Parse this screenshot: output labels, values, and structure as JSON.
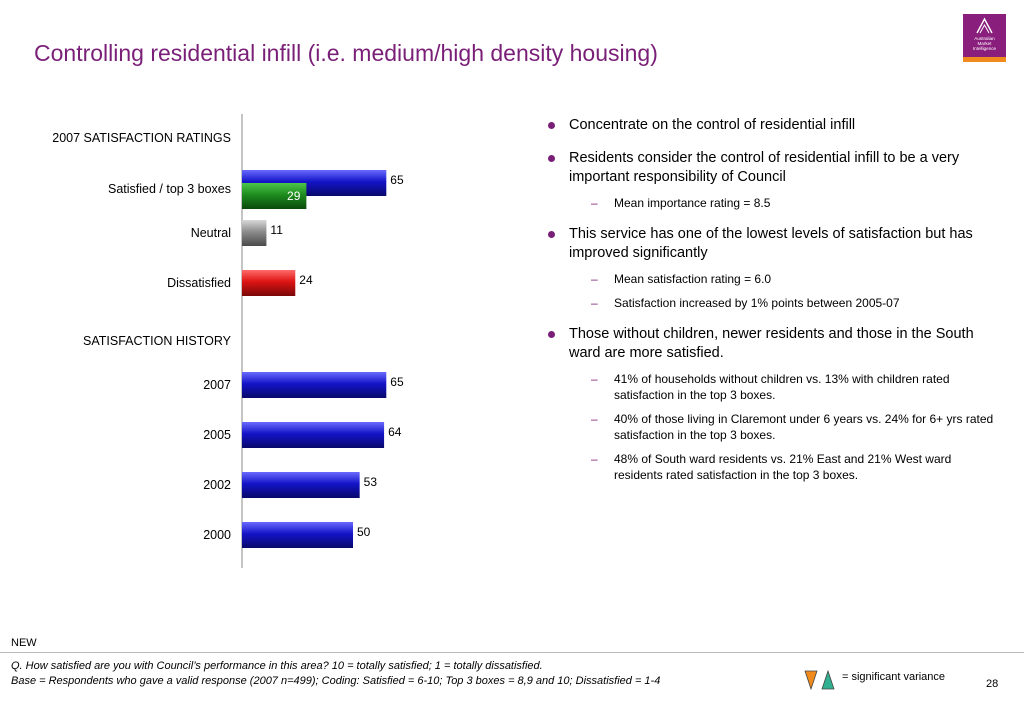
{
  "title": "Controlling residential infill (i.e. medium/high density housing)",
  "logo": {
    "lines": [
      "Australian",
      "Market",
      "Intelligence"
    ]
  },
  "colors": {
    "title": "#7a1f78",
    "blue": "#1414c8",
    "green": "#1e8c1e",
    "grey": "#8c8c8c",
    "red": "#dc1414",
    "orange": "#f08a1c",
    "teal": "#30b090"
  },
  "chart_data": {
    "type": "bar",
    "orientation": "horizontal",
    "section_headers": [
      "2007 SATISFACTION RATINGS",
      "SATISFACTION HISTORY"
    ],
    "xlim": [
      0,
      100
    ],
    "grid": false,
    "rows": [
      {
        "section": 0,
        "label": "Satisfied / top 3 boxes",
        "bars": [
          {
            "value": 65,
            "color": "blue"
          },
          {
            "value": 29,
            "color": "green"
          }
        ]
      },
      {
        "section": 0,
        "label": "Neutral",
        "bars": [
          {
            "value": 11,
            "color": "grey"
          }
        ]
      },
      {
        "section": 0,
        "label": "Dissatisfied",
        "bars": [
          {
            "value": 24,
            "color": "red"
          }
        ]
      },
      {
        "section": 1,
        "label": "2007",
        "bars": [
          {
            "value": 65,
            "color": "blue"
          }
        ]
      },
      {
        "section": 1,
        "label": "2005",
        "bars": [
          {
            "value": 64,
            "color": "blue"
          }
        ]
      },
      {
        "section": 1,
        "label": "2002",
        "bars": [
          {
            "value": 53,
            "color": "blue"
          }
        ]
      },
      {
        "section": 1,
        "label": "2000",
        "bars": [
          {
            "value": 50,
            "color": "blue"
          }
        ]
      }
    ]
  },
  "bullets": [
    {
      "text": "Concentrate on the control of residential infill",
      "subs": []
    },
    {
      "text": "Residents consider the control of residential infill to be a very important responsibility of Council",
      "subs": [
        "Mean importance rating = 8.5"
      ]
    },
    {
      "text": "This service has one of the lowest levels of satisfaction but has improved significantly",
      "subs": [
        "Mean satisfaction rating = 6.0",
        "Satisfaction increased by 1% points between 2005-07"
      ]
    },
    {
      "text": "Those without children, newer residents and those in the South ward are more satisfied.",
      "subs": [
        "41% of households without children vs. 13% with children rated satisfaction in the top 3 boxes.",
        "40% of those living in Claremont under 6 years vs. 24% for 6+ yrs rated satisfaction in the top 3 boxes.",
        "48% of South ward residents vs. 21% East and 21% West ward residents rated satisfaction in the top 3 boxes."
      ]
    }
  ],
  "footer": {
    "new_label": "NEW",
    "question": "Q. How satisfied are you with Council’s performance in this area? 10 = totally satisfied; 1 = totally dissatisfied.",
    "base": "Base = Respondents who gave a valid response (2007 n=499); Coding: Satisfied = 6-10; Top 3 boxes = 8,9 and 10; Dissatisfied = 1-4",
    "variance_label": "= significant variance",
    "page_number": "28"
  }
}
